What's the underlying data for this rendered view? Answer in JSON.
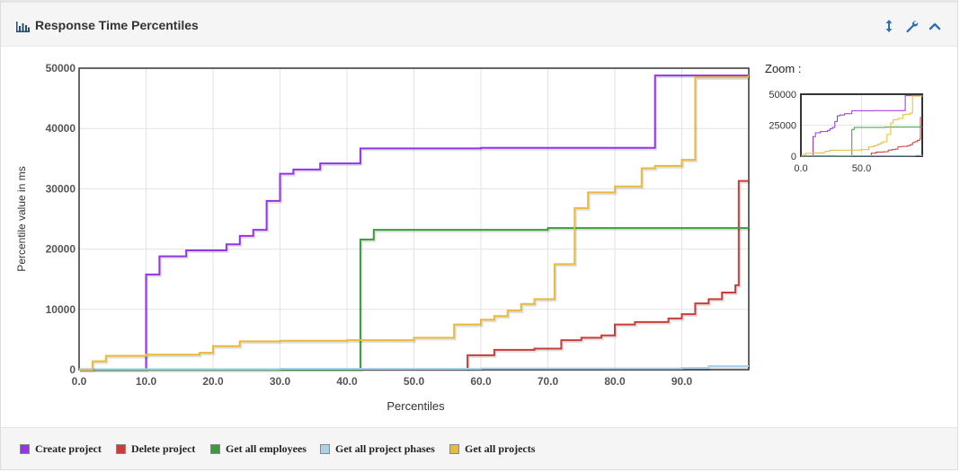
{
  "panel": {
    "title": "Response Time Percentiles",
    "icons": [
      "bar-chart-icon",
      "expand-vertical-icon",
      "wrench-icon",
      "collapse-chevron-icon"
    ]
  },
  "zoom": {
    "label": "Zoom :",
    "y_ticks": [
      "50000",
      "25000",
      "0"
    ],
    "x_ticks": [
      "0.0",
      "50.0"
    ]
  },
  "chart_data": {
    "type": "line",
    "xlabel": "Percentiles",
    "ylabel": "Percentile value in ms",
    "xlim": [
      0,
      100
    ],
    "ylim": [
      0,
      50000
    ],
    "x_ticks": [
      "0.0",
      "10.0",
      "20.0",
      "30.0",
      "40.0",
      "50.0",
      "60.0",
      "70.0",
      "80.0",
      "90.0"
    ],
    "y_ticks": [
      "0",
      "10000",
      "20000",
      "30000",
      "40000",
      "50000"
    ],
    "grid": true,
    "step": true,
    "legend_position": "bottom",
    "series": [
      {
        "name": "Create project",
        "color": "#9334e6",
        "points": [
          [
            0,
            0
          ],
          [
            9.9,
            0
          ],
          [
            10,
            15800
          ],
          [
            12,
            18800
          ],
          [
            16,
            19800
          ],
          [
            22,
            20800
          ],
          [
            24,
            22200
          ],
          [
            26,
            23200
          ],
          [
            28,
            28000
          ],
          [
            30,
            32500
          ],
          [
            32,
            33200
          ],
          [
            36,
            34200
          ],
          [
            42,
            36700
          ],
          [
            60,
            36800
          ],
          [
            86,
            48800
          ],
          [
            100,
            48900
          ]
        ]
      },
      {
        "name": "Delete project",
        "color": "#c93c3c",
        "points": [
          [
            58,
            0
          ],
          [
            58,
            2400
          ],
          [
            62,
            3300
          ],
          [
            68,
            3500
          ],
          [
            72,
            4900
          ],
          [
            75,
            5300
          ],
          [
            78,
            5700
          ],
          [
            80,
            7500
          ],
          [
            83,
            7900
          ],
          [
            88,
            8500
          ],
          [
            90,
            9200
          ],
          [
            92,
            11000
          ],
          [
            94,
            11700
          ],
          [
            96,
            12800
          ],
          [
            98,
            14000
          ],
          [
            98.5,
            31300
          ],
          [
            100,
            31300
          ]
        ]
      },
      {
        "name": "Get all employees",
        "color": "#3a9c3f",
        "points": [
          [
            0,
            0
          ],
          [
            41.9,
            0
          ],
          [
            42,
            21600
          ],
          [
            44,
            23200
          ],
          [
            70,
            23500
          ],
          [
            100,
            23600
          ]
        ]
      },
      {
        "name": "Get all project phases",
        "color": "#a8d1ee",
        "points": [
          [
            0,
            100
          ],
          [
            30,
            150
          ],
          [
            60,
            200
          ],
          [
            90,
            300
          ],
          [
            94,
            600
          ],
          [
            100,
            700
          ]
        ]
      },
      {
        "name": "Get all projects",
        "color": "#e8b93a",
        "points": [
          [
            0,
            0
          ],
          [
            2,
            1400
          ],
          [
            4,
            2300
          ],
          [
            10,
            2500
          ],
          [
            18,
            2800
          ],
          [
            20,
            3900
          ],
          [
            24,
            4700
          ],
          [
            30,
            4800
          ],
          [
            40,
            4900
          ],
          [
            50,
            5300
          ],
          [
            56,
            7500
          ],
          [
            60,
            8300
          ],
          [
            62,
            8900
          ],
          [
            64,
            9800
          ],
          [
            66,
            10900
          ],
          [
            68,
            11700
          ],
          [
            71,
            17500
          ],
          [
            74,
            26800
          ],
          [
            76,
            29400
          ],
          [
            80,
            30400
          ],
          [
            84,
            33400
          ],
          [
            86,
            33800
          ],
          [
            90,
            34800
          ],
          [
            92,
            48500
          ],
          [
            100,
            48900
          ]
        ]
      }
    ]
  }
}
